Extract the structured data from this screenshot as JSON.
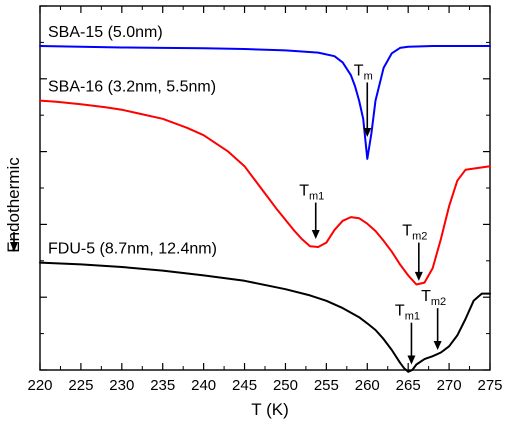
{
  "chart_data": {
    "type": "line",
    "xlabel": "T (K)",
    "ylabel": "Endothermic",
    "xlim": [
      220,
      275
    ],
    "x_ticks": [
      220,
      225,
      230,
      235,
      240,
      245,
      250,
      255,
      260,
      265,
      270,
      275
    ],
    "y_tick_labels_shown": false,
    "grid": false,
    "legend": "none",
    "ylim": [
      0,
      10
    ],
    "series": [
      {
        "name": "SBA-15 (5.0nm)",
        "color": "#0000ff",
        "x": [
          220,
          225,
          230,
          235,
          240,
          245,
          250,
          254,
          256,
          257,
          258,
          258.5,
          259,
          259.5,
          260,
          260.5,
          261,
          262,
          263,
          264,
          265,
          268,
          270,
          275
        ],
        "y": [
          8.9,
          8.88,
          8.86,
          8.85,
          8.84,
          8.82,
          8.78,
          8.72,
          8.62,
          8.45,
          8.1,
          7.8,
          7.4,
          6.9,
          5.8,
          6.5,
          7.4,
          8.3,
          8.7,
          8.85,
          8.88,
          8.9,
          8.9,
          8.9
        ]
      },
      {
        "name": "SBA-16 (3.2nm, 5.5nm)",
        "color": "#ff0000",
        "x": [
          220,
          222,
          225,
          228,
          230,
          232,
          235,
          238,
          240,
          243,
          245,
          247,
          249,
          251,
          252,
          253,
          254,
          255,
          256,
          257,
          258,
          259,
          260,
          261,
          262,
          263,
          264,
          265,
          266,
          267,
          268,
          269,
          270,
          271,
          272,
          275
        ],
        "y": [
          7.4,
          7.37,
          7.3,
          7.22,
          7.15,
          7.05,
          6.9,
          6.65,
          6.45,
          6.0,
          5.6,
          5.0,
          4.4,
          3.85,
          3.6,
          3.4,
          3.38,
          3.5,
          3.85,
          4.1,
          4.2,
          4.17,
          4.02,
          3.82,
          3.55,
          3.25,
          2.9,
          2.6,
          2.35,
          2.4,
          2.8,
          3.6,
          4.5,
          5.2,
          5.5,
          5.6
        ]
      },
      {
        "name": "FDU-5 (8.7nm, 12.4nm)",
        "color": "#000000",
        "x": [
          220,
          225,
          230,
          235,
          240,
          245,
          250,
          253,
          255,
          257,
          259,
          260,
          261,
          262,
          263,
          264,
          264.5,
          265,
          265.5,
          266,
          267,
          268,
          269,
          270,
          271,
          272,
          273,
          274,
          275
        ],
        "y": [
          2.95,
          2.9,
          2.83,
          2.73,
          2.6,
          2.45,
          2.22,
          2.05,
          1.9,
          1.7,
          1.45,
          1.28,
          1.1,
          0.85,
          0.55,
          0.2,
          0.05,
          -0.05,
          0.0,
          0.15,
          0.3,
          0.38,
          0.48,
          0.65,
          0.95,
          1.4,
          1.9,
          2.1,
          2.1
        ]
      }
    ],
    "annotations": [
      {
        "text": "T",
        "sub": "m",
        "x": 260,
        "y_top": 7.9,
        "y_tip": 6.4
      },
      {
        "text": "T",
        "sub": "m1",
        "x": 253.7,
        "y_top": 4.6,
        "y_tip": 3.6
      },
      {
        "text": "T",
        "sub": "m2",
        "x": 266.3,
        "y_top": 3.5,
        "y_tip": 2.45
      },
      {
        "text": "T",
        "sub": "m1",
        "x": 265.4,
        "y_top": 1.3,
        "y_tip": 0.15
      },
      {
        "text": "T",
        "sub": "m2",
        "x": 268.6,
        "y_top": 1.7,
        "y_tip": 0.55
      }
    ]
  }
}
